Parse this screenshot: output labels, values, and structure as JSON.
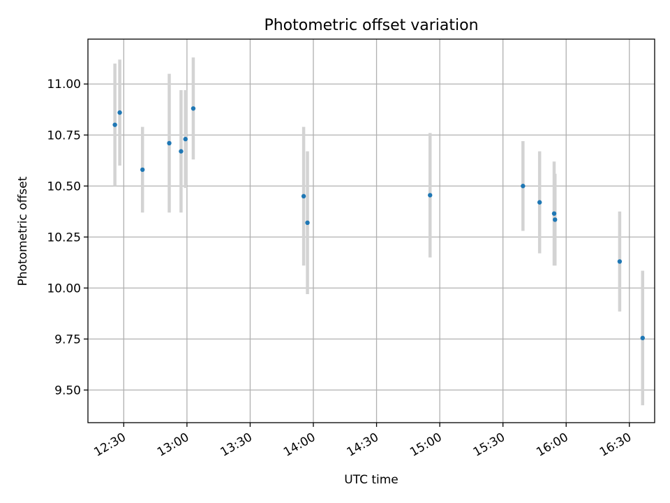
{
  "chart_data": {
    "type": "scatter",
    "title": "Photometric offset variation",
    "xlabel": "UTC time",
    "ylabel": "Photometric offset",
    "xlim": [
      "12:13",
      "16:42"
    ],
    "ylim": [
      9.34,
      11.22
    ],
    "grid": true,
    "x_ticks": [
      "12:30",
      "13:00",
      "13:30",
      "14:00",
      "14:30",
      "15:00",
      "15:30",
      "16:00",
      "16:30"
    ],
    "y_ticks": [
      9.5,
      9.75,
      10.0,
      10.25,
      10.5,
      10.75,
      11.0
    ],
    "y_tick_labels": [
      "9.50",
      "9.75",
      "10.00",
      "10.25",
      "10.50",
      "10.75",
      "11.00"
    ],
    "marker_color": "#1f77b4",
    "errorbar_color": "#d3d3d3",
    "points": [
      {
        "time": "12:25.8",
        "value": 10.8,
        "err": 0.3
      },
      {
        "time": "12:28.1",
        "value": 10.86,
        "err": 0.26
      },
      {
        "time": "12:38.9",
        "value": 10.58,
        "err": 0.21
      },
      {
        "time": "12:51.6",
        "value": 10.71,
        "err": 0.34
      },
      {
        "time": "12:57.2",
        "value": 10.67,
        "err": 0.3
      },
      {
        "time": "12:59.3",
        "value": 10.73,
        "err": 0.24
      },
      {
        "time": "13:03.0",
        "value": 10.88,
        "err": 0.25
      },
      {
        "time": "13:55.4",
        "value": 10.45,
        "err": 0.34
      },
      {
        "time": "13:57.2",
        "value": 10.32,
        "err": 0.35
      },
      {
        "time": "14:55.4",
        "value": 10.455,
        "err": 0.305
      },
      {
        "time": "15:39.5",
        "value": 10.5,
        "err": 0.22
      },
      {
        "time": "15:47.4",
        "value": 10.42,
        "err": 0.25
      },
      {
        "time": "15:54.3",
        "value": 10.365,
        "err": 0.255
      },
      {
        "time": "15:54.7",
        "value": 10.335,
        "err": 0.225
      },
      {
        "time": "16:25.4",
        "value": 10.13,
        "err": 0.245
      },
      {
        "time": "16:36.3",
        "value": 9.755,
        "err": 0.33
      }
    ]
  }
}
